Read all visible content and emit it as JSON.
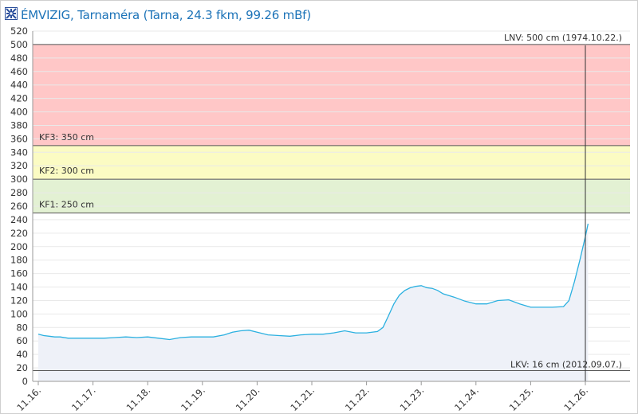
{
  "header": {
    "title": "ÉMVIZIG, Tarnaméra (Tarna, 24.3 fkm, 99.26 mBf)",
    "logo_icon": "emvizig-logo-icon"
  },
  "colors": {
    "line": "#2bb0e0",
    "area": "#eef1f8",
    "zone_red": "#ffc7c7",
    "zone_yellow": "#fbfbc3",
    "zone_green": "#e3f1d3",
    "reference_line": "#555555",
    "grid": "#e9e9e9",
    "axis_text": "#333333"
  },
  "chart_data": {
    "type": "area",
    "ylim": [
      0,
      520
    ],
    "ytick_step": 20,
    "xlim": [
      0,
      10.42
    ],
    "x_tick_labels": [
      "11.16.",
      "11.17.",
      "11.18.",
      "11.19.",
      "11.20.",
      "11.21.",
      "11.22.",
      "11.23.",
      "11.24.",
      "11.25.",
      "11.26."
    ],
    "grid": "horizontal",
    "zones": [
      {
        "label": "",
        "from": 350,
        "to": 500,
        "color": "#ffc7c7"
      },
      {
        "label": "",
        "from": 300,
        "to": 350,
        "color": "#fbfbc3"
      },
      {
        "label": "",
        "from": 250,
        "to": 300,
        "color": "#e3f1d3"
      }
    ],
    "reference_lines": [
      {
        "label": "LNV: 500 cm (1974.10.22.)",
        "value": 500,
        "label_position": "top-right"
      },
      {
        "label": "KF3: 350 cm",
        "value": 350,
        "label_position": "left"
      },
      {
        "label": "KF2: 300 cm",
        "value": 300,
        "label_position": "left"
      },
      {
        "label": "KF1: 250 cm",
        "value": 250,
        "label_position": "left"
      },
      {
        "label": "LKV: 16 cm (2012.09.07.)",
        "value": 16,
        "label_position": "bottom-right"
      }
    ],
    "current_time_marker": 10.0,
    "series": [
      {
        "x": [
          0.0,
          0.1,
          0.2,
          0.3,
          0.4,
          0.55,
          0.7,
          0.85,
          1.0,
          1.2,
          1.4,
          1.6,
          1.8,
          2.0,
          2.2,
          2.4,
          2.6,
          2.8,
          3.0,
          3.2,
          3.4,
          3.55,
          3.7,
          3.85,
          4.0,
          4.2,
          4.4,
          4.6,
          4.8,
          5.0,
          5.2,
          5.4,
          5.6,
          5.8,
          6.0,
          6.2,
          6.3,
          6.4,
          6.5,
          6.6,
          6.7,
          6.8,
          6.9,
          7.0,
          7.1,
          7.2,
          7.3,
          7.4,
          7.6,
          7.8,
          8.0,
          8.2,
          8.4,
          8.6,
          8.8,
          9.0,
          9.2,
          9.4,
          9.6,
          9.7,
          9.8,
          9.9,
          10.0,
          10.05
        ],
        "y": [
          70,
          68,
          67,
          66,
          66,
          64,
          64,
          64,
          64,
          64,
          65,
          66,
          65,
          66,
          64,
          62,
          65,
          66,
          66,
          66,
          69,
          73,
          75,
          76,
          73,
          69,
          68,
          67,
          69,
          70,
          70,
          72,
          75,
          72,
          72,
          74,
          80,
          97,
          115,
          128,
          135,
          139,
          141,
          142,
          139,
          138,
          135,
          130,
          125,
          119,
          115,
          115,
          120,
          121,
          115,
          110,
          110,
          110,
          111,
          120,
          148,
          180,
          215,
          234
        ]
      }
    ]
  }
}
